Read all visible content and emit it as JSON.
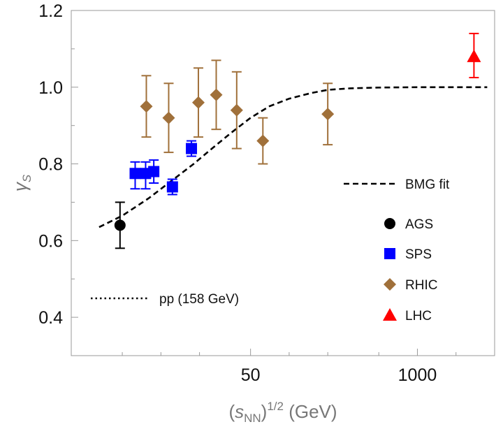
{
  "chart_data": {
    "type": "scatter",
    "xlabel": "(s_NN)^1/2 (GeV)",
    "xlabel_parts": {
      "open": "(",
      "sym": "s",
      "sub": "NN",
      "close": ")",
      "sup": "1/2",
      "unit": " (GeV)"
    },
    "ylabel_parts": {
      "sym": "γ",
      "sub": "S"
    },
    "x_scale": "log",
    "xlim": [
      2,
      4000
    ],
    "ylim": [
      0.3,
      1.2
    ],
    "x_ticks": [
      50,
      1000
    ],
    "x_tick_labels": [
      "50",
      "1000"
    ],
    "y_ticks": [
      0.4,
      0.6,
      0.8,
      1.0,
      1.2
    ],
    "y_tick_labels": [
      "0.4",
      "0.6",
      "0.8",
      "1.0",
      "1.2"
    ],
    "grid": false,
    "series": [
      {
        "name": "AGS",
        "marker": "circle",
        "color": "#000000",
        "points": [
          {
            "x": 4.8,
            "y": 0.64,
            "err_low": 0.06,
            "err_high": 0.06
          }
        ]
      },
      {
        "name": "SPS",
        "marker": "square",
        "color": "#0000ff",
        "points": [
          {
            "x": 6.3,
            "y": 0.775,
            "err_low": 0.04,
            "err_high": 0.03
          },
          {
            "x": 7.6,
            "y": 0.775,
            "err_low": 0.04,
            "err_high": 0.03
          },
          {
            "x": 8.8,
            "y": 0.78,
            "err_low": 0.03,
            "err_high": 0.03
          },
          {
            "x": 12.3,
            "y": 0.74,
            "err_low": 0.02,
            "err_high": 0.02
          },
          {
            "x": 17.3,
            "y": 0.84,
            "err_low": 0.02,
            "err_high": 0.02
          }
        ]
      },
      {
        "name": "RHIC",
        "marker": "diamond",
        "color": "#a0703a",
        "points": [
          {
            "x": 7.7,
            "y": 0.95,
            "err_low": 0.08,
            "err_high": 0.08
          },
          {
            "x": 11.5,
            "y": 0.92,
            "err_low": 0.09,
            "err_high": 0.09
          },
          {
            "x": 19.6,
            "y": 0.96,
            "err_low": 0.09,
            "err_high": 0.09
          },
          {
            "x": 27,
            "y": 0.98,
            "err_low": 0.09,
            "err_high": 0.09
          },
          {
            "x": 39,
            "y": 0.94,
            "err_low": 0.1,
            "err_high": 0.1
          },
          {
            "x": 62.4,
            "y": 0.86,
            "err_low": 0.06,
            "err_high": 0.06
          },
          {
            "x": 200,
            "y": 0.93,
            "err_low": 0.08,
            "err_high": 0.08
          }
        ]
      },
      {
        "name": "LHC",
        "marker": "triangle",
        "color": "#ff0000",
        "points": [
          {
            "x": 2760,
            "y": 1.08,
            "err_low": 0.055,
            "err_high": 0.06
          }
        ]
      }
    ],
    "fit": {
      "name": "BMG fit",
      "style": "dashed",
      "x": [
        3.3,
        5,
        8,
        12,
        18,
        25,
        35,
        50,
        70,
        100,
        150,
        200,
        300,
        500,
        1000,
        2000,
        3500
      ],
      "y": [
        0.635,
        0.665,
        0.71,
        0.755,
        0.8,
        0.84,
        0.88,
        0.92,
        0.95,
        0.97,
        0.985,
        0.993,
        0.997,
        0.999,
        1.0,
        1.0,
        1.0
      ]
    },
    "pp_reference": {
      "name": "pp (158 GeV)",
      "style": "dotted"
    },
    "legend": {
      "fit_label": "BMG fit",
      "pp_label": "pp (158 GeV)",
      "entries": [
        "AGS",
        "SPS",
        "RHIC",
        "LHC"
      ]
    }
  }
}
